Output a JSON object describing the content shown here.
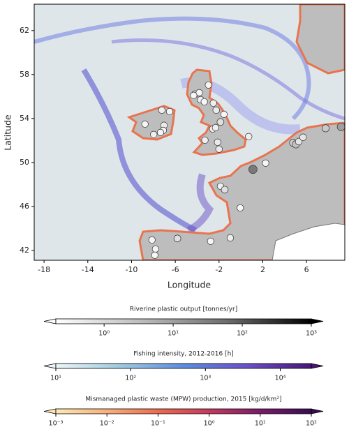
{
  "map": {
    "xlabel": "Longitude",
    "ylabel": "Latitude",
    "xlim": [
      -18.9,
      9.5
    ],
    "ylim": [
      41.1,
      64.4
    ],
    "xticks": [
      -18,
      -14,
      -10,
      -6,
      -2,
      2,
      6
    ],
    "yticks": [
      42,
      46,
      50,
      54,
      58,
      62
    ],
    "points": {
      "lon": [
        -2.97,
        -4.19,
        -3.81,
        -4.32,
        -3.68,
        -3.35,
        -7.23,
        -6.52,
        -2.52,
        -2.26,
        -1.55,
        -1.87,
        -2.58,
        -2.32,
        -8.77,
        -7.03,
        -7.1,
        -7.35,
        -7.97,
        -3.29,
        -2.13,
        -2.0,
        0.71,
        1.1,
        2.26,
        -1.87,
        -1.48,
        -0.06,
        4.77,
        5.03,
        5.29,
        5.68,
        7.74,
        9.16,
        -8.13,
        -7.81,
        -7.87,
        -5.81,
        -2.77,
        -0.97
      ],
      "lat": [
        57.05,
        56.22,
        56.35,
        56.1,
        55.71,
        55.52,
        54.76,
        54.63,
        55.4,
        54.76,
        54.38,
        53.68,
        53.05,
        53.17,
        53.49,
        53.37,
        52.92,
        52.73,
        52.54,
        52.03,
        51.84,
        51.21,
        52.35,
        49.37,
        49.94,
        47.84,
        47.52,
        45.87,
        51.78,
        51.65,
        51.9,
        52.29,
        53.11,
        53.24,
        42.95,
        42.13,
        41.56,
        43.08,
        42.83,
        43.14
      ],
      "output": [
        0.3,
        0.5,
        0.3,
        0.3,
        0.4,
        0.3,
        0.4,
        0.3,
        0.4,
        0.5,
        0.3,
        0.8,
        0.4,
        0.4,
        0.3,
        0.5,
        0.3,
        0.3,
        0.4,
        0.4,
        0.5,
        0.5,
        0.4,
        40,
        0.3,
        0.4,
        0.8,
        0.3,
        1.5,
        3,
        0.6,
        0.6,
        2,
        10,
        0.3,
        0.3,
        0.3,
        0.8,
        0.3,
        0.4
      ]
    }
  },
  "colorbars": [
    {
      "title": "Riverine plastic output [tonnes/yr]",
      "scale": "log",
      "lim": [
        0.2,
        1000
      ],
      "colors": [
        "#ffffff",
        "#bdbdbd",
        "#6e6e6e",
        "#000000"
      ],
      "ticks": [
        {
          "value": 1,
          "label": "10⁰"
        },
        {
          "value": 10,
          "label": "10¹"
        },
        {
          "value": 100,
          "label": "10²"
        },
        {
          "value": 1000,
          "label": "10³"
        }
      ]
    },
    {
      "title": "Fishing intensity, 2012-2016 [h]",
      "scale": "log",
      "lim": [
        10,
        26000
      ],
      "colors": [
        "#eef5f8",
        "#9ecbe0",
        "#5b8de0",
        "#6a4fc8",
        "#4a1578"
      ],
      "ticks": [
        {
          "value": 10,
          "label": "10¹"
        },
        {
          "value": 100,
          "label": "10²"
        },
        {
          "value": 1000,
          "label": "10³"
        },
        {
          "value": 10000,
          "label": "10⁴"
        }
      ]
    },
    {
      "title": "Mismanaged plastic waste (MPW) production, 2015 [kg/d/km²]",
      "scale": "log",
      "lim": [
        0.001,
        100
      ],
      "colors": [
        "#fde9b4",
        "#f8b07a",
        "#ee6a50",
        "#c63a5e",
        "#7a1a6a",
        "#3a0b55"
      ],
      "ticks": [
        {
          "value": 0.001,
          "label": "10⁻³"
        },
        {
          "value": 0.01,
          "label": "10⁻²"
        },
        {
          "value": 0.1,
          "label": "10⁻¹"
        },
        {
          "value": 1,
          "label": "10⁰"
        },
        {
          "value": 10,
          "label": "10¹"
        },
        {
          "value": 100,
          "label": "10²"
        }
      ]
    }
  ]
}
